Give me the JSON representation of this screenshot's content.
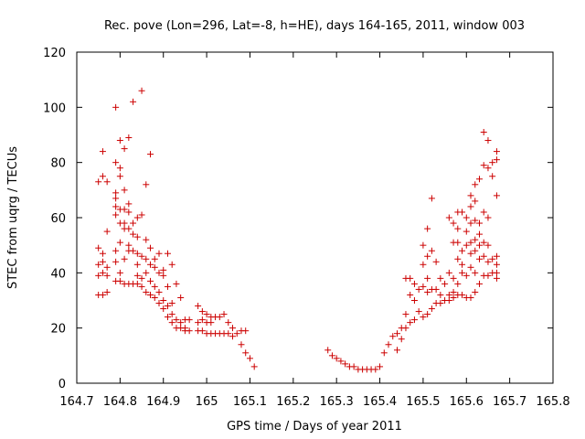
{
  "chart_data": {
    "type": "scatter",
    "title": "Rec. pove (Lon=296, Lat=-8, h=HE), days 164-165, 2011, window 003",
    "xlabel": "GPS time / Days of year 2011",
    "ylabel": "STEC from uqrg / TECUs",
    "xlim": [
      164.7,
      165.8
    ],
    "ylim": [
      0,
      120
    ],
    "xticks": [
      "164.7",
      "164.8",
      "164.9",
      "165",
      "165.1",
      "165.2",
      "165.3",
      "165.4",
      "165.5",
      "165.6",
      "165.7",
      "165.8"
    ],
    "yticks": [
      "0",
      "20",
      "40",
      "60",
      "80",
      "100",
      "120"
    ],
    "grid": false,
    "marker": "+",
    "marker_color": "#cc0000",
    "series": [
      {
        "points": [
          [
            164.75,
            73
          ],
          [
            164.75,
            49
          ],
          [
            164.75,
            43
          ],
          [
            164.75,
            39
          ],
          [
            164.75,
            32
          ],
          [
            164.76,
            84
          ],
          [
            164.76,
            75
          ],
          [
            164.76,
            47
          ],
          [
            164.76,
            44
          ],
          [
            164.76,
            40
          ],
          [
            164.76,
            32
          ],
          [
            164.77,
            73
          ],
          [
            164.77,
            55
          ],
          [
            164.77,
            42
          ],
          [
            164.77,
            39
          ],
          [
            164.77,
            33
          ],
          [
            164.79,
            100
          ],
          [
            164.79,
            80
          ],
          [
            164.79,
            69
          ],
          [
            164.79,
            67
          ],
          [
            164.79,
            64
          ],
          [
            164.79,
            61
          ],
          [
            164.79,
            48
          ],
          [
            164.79,
            44
          ],
          [
            164.79,
            37
          ],
          [
            164.8,
            88
          ],
          [
            164.8,
            78
          ],
          [
            164.8,
            75
          ],
          [
            164.8,
            63
          ],
          [
            164.8,
            58
          ],
          [
            164.8,
            51
          ],
          [
            164.8,
            40
          ],
          [
            164.8,
            37
          ],
          [
            164.81,
            85
          ],
          [
            164.81,
            70
          ],
          [
            164.81,
            63
          ],
          [
            164.81,
            58
          ],
          [
            164.81,
            56
          ],
          [
            164.81,
            45
          ],
          [
            164.81,
            36
          ],
          [
            164.82,
            89
          ],
          [
            164.82,
            65
          ],
          [
            164.82,
            62
          ],
          [
            164.82,
            56
          ],
          [
            164.82,
            50
          ],
          [
            164.82,
            48
          ],
          [
            164.82,
            36
          ],
          [
            164.83,
            102
          ],
          [
            164.83,
            58
          ],
          [
            164.83,
            54
          ],
          [
            164.83,
            48
          ],
          [
            164.83,
            36
          ],
          [
            164.84,
            60
          ],
          [
            164.84,
            53
          ],
          [
            164.84,
            47
          ],
          [
            164.84,
            43
          ],
          [
            164.84,
            39
          ],
          [
            164.84,
            36
          ],
          [
            164.85,
            106
          ],
          [
            164.85,
            61
          ],
          [
            164.85,
            46
          ],
          [
            164.85,
            38
          ],
          [
            164.85,
            35
          ],
          [
            164.86,
            72
          ],
          [
            164.86,
            52
          ],
          [
            164.86,
            45
          ],
          [
            164.86,
            40
          ],
          [
            164.86,
            33
          ],
          [
            164.87,
            83
          ],
          [
            164.87,
            49
          ],
          [
            164.87,
            43
          ],
          [
            164.87,
            37
          ],
          [
            164.87,
            32
          ],
          [
            164.88,
            45
          ],
          [
            164.88,
            42
          ],
          [
            164.88,
            35
          ],
          [
            164.88,
            31
          ],
          [
            164.89,
            47
          ],
          [
            164.89,
            40
          ],
          [
            164.89,
            33
          ],
          [
            164.89,
            29
          ],
          [
            164.9,
            41
          ],
          [
            164.9,
            39
          ],
          [
            164.9,
            30
          ],
          [
            164.9,
            27
          ],
          [
            164.91,
            47
          ],
          [
            164.91,
            35
          ],
          [
            164.91,
            28
          ],
          [
            164.91,
            24
          ],
          [
            164.92,
            43
          ],
          [
            164.92,
            29
          ],
          [
            164.92,
            25
          ],
          [
            164.92,
            22
          ],
          [
            164.93,
            36
          ],
          [
            164.93,
            23
          ],
          [
            164.93,
            20
          ],
          [
            164.94,
            31
          ],
          [
            164.94,
            22
          ],
          [
            164.94,
            20
          ],
          [
            164.95,
            23
          ],
          [
            164.95,
            20
          ],
          [
            164.95,
            19
          ],
          [
            164.96,
            23
          ],
          [
            164.96,
            19
          ],
          [
            164.98,
            28
          ],
          [
            164.98,
            22
          ],
          [
            164.98,
            19
          ],
          [
            164.99,
            26
          ],
          [
            164.99,
            23
          ],
          [
            164.99,
            19
          ],
          [
            165.0,
            25
          ],
          [
            165.0,
            22
          ],
          [
            165.0,
            18
          ],
          [
            165.01,
            24
          ],
          [
            165.01,
            22
          ],
          [
            165.01,
            18
          ],
          [
            165.02,
            24
          ],
          [
            165.02,
            18
          ],
          [
            165.03,
            24
          ],
          [
            165.03,
            18
          ],
          [
            165.04,
            25
          ],
          [
            165.04,
            18
          ],
          [
            165.05,
            22
          ],
          [
            165.05,
            18
          ],
          [
            165.06,
            17
          ],
          [
            165.06,
            20
          ],
          [
            165.07,
            18
          ],
          [
            165.08,
            19
          ],
          [
            165.08,
            14
          ],
          [
            165.09,
            19
          ],
          [
            165.09,
            11
          ],
          [
            165.1,
            9
          ],
          [
            165.11,
            6
          ],
          [
            165.28,
            12
          ],
          [
            165.29,
            10
          ],
          [
            165.3,
            9
          ],
          [
            165.31,
            8
          ],
          [
            165.32,
            7
          ],
          [
            165.33,
            6
          ],
          [
            165.34,
            6
          ],
          [
            165.35,
            5
          ],
          [
            165.36,
            5
          ],
          [
            165.37,
            5
          ],
          [
            165.38,
            5
          ],
          [
            165.39,
            5
          ],
          [
            165.4,
            6
          ],
          [
            165.41,
            11
          ],
          [
            165.42,
            14
          ],
          [
            165.43,
            17
          ],
          [
            165.44,
            18
          ],
          [
            165.44,
            12
          ],
          [
            165.45,
            20
          ],
          [
            165.45,
            16
          ],
          [
            165.46,
            38
          ],
          [
            165.46,
            25
          ],
          [
            165.46,
            20
          ],
          [
            165.47,
            38
          ],
          [
            165.47,
            32
          ],
          [
            165.47,
            22
          ],
          [
            165.48,
            36
          ],
          [
            165.48,
            30
          ],
          [
            165.48,
            23
          ],
          [
            165.49,
            34
          ],
          [
            165.49,
            26
          ],
          [
            165.5,
            50
          ],
          [
            165.5,
            43
          ],
          [
            165.5,
            35
          ],
          [
            165.5,
            24
          ],
          [
            165.51,
            56
          ],
          [
            165.51,
            46
          ],
          [
            165.51,
            38
          ],
          [
            165.51,
            33
          ],
          [
            165.51,
            25
          ],
          [
            165.52,
            67
          ],
          [
            165.52,
            48
          ],
          [
            165.52,
            34
          ],
          [
            165.52,
            27
          ],
          [
            165.53,
            44
          ],
          [
            165.53,
            34
          ],
          [
            165.53,
            29
          ],
          [
            165.54,
            38
          ],
          [
            165.54,
            32
          ],
          [
            165.54,
            29
          ],
          [
            165.55,
            36
          ],
          [
            165.55,
            30
          ],
          [
            165.56,
            60
          ],
          [
            165.56,
            40
          ],
          [
            165.56,
            32
          ],
          [
            165.56,
            30
          ],
          [
            165.57,
            58
          ],
          [
            165.57,
            51
          ],
          [
            165.57,
            38
          ],
          [
            165.57,
            33
          ],
          [
            165.57,
            31
          ],
          [
            165.58,
            62
          ],
          [
            165.58,
            56
          ],
          [
            165.58,
            51
          ],
          [
            165.58,
            45
          ],
          [
            165.58,
            36
          ],
          [
            165.58,
            32
          ],
          [
            165.59,
            62
          ],
          [
            165.59,
            48
          ],
          [
            165.59,
            43
          ],
          [
            165.59,
            40
          ],
          [
            165.59,
            32
          ],
          [
            165.6,
            60
          ],
          [
            165.6,
            55
          ],
          [
            165.6,
            50
          ],
          [
            165.6,
            39
          ],
          [
            165.6,
            31
          ],
          [
            165.61,
            68
          ],
          [
            165.61,
            64
          ],
          [
            165.61,
            58
          ],
          [
            165.61,
            51
          ],
          [
            165.61,
            47
          ],
          [
            165.61,
            42
          ],
          [
            165.61,
            31
          ],
          [
            165.62,
            72
          ],
          [
            165.62,
            66
          ],
          [
            165.62,
            59
          ],
          [
            165.62,
            52
          ],
          [
            165.62,
            48
          ],
          [
            165.62,
            40
          ],
          [
            165.62,
            33
          ],
          [
            165.63,
            74
          ],
          [
            165.63,
            58
          ],
          [
            165.63,
            54
          ],
          [
            165.63,
            50
          ],
          [
            165.63,
            45
          ],
          [
            165.63,
            36
          ],
          [
            165.64,
            91
          ],
          [
            165.64,
            79
          ],
          [
            165.64,
            62
          ],
          [
            165.64,
            51
          ],
          [
            165.64,
            46
          ],
          [
            165.64,
            39
          ],
          [
            165.65,
            88
          ],
          [
            165.65,
            78
          ],
          [
            165.65,
            60
          ],
          [
            165.65,
            50
          ],
          [
            165.65,
            44
          ],
          [
            165.65,
            39
          ],
          [
            165.66,
            80
          ],
          [
            165.66,
            75
          ],
          [
            165.66,
            45
          ],
          [
            165.66,
            40
          ],
          [
            165.67,
            84
          ],
          [
            165.67,
            81
          ],
          [
            165.67,
            68
          ],
          [
            165.67,
            46
          ],
          [
            165.67,
            43
          ],
          [
            165.67,
            40
          ],
          [
            165.67,
            38
          ]
        ]
      }
    ]
  }
}
